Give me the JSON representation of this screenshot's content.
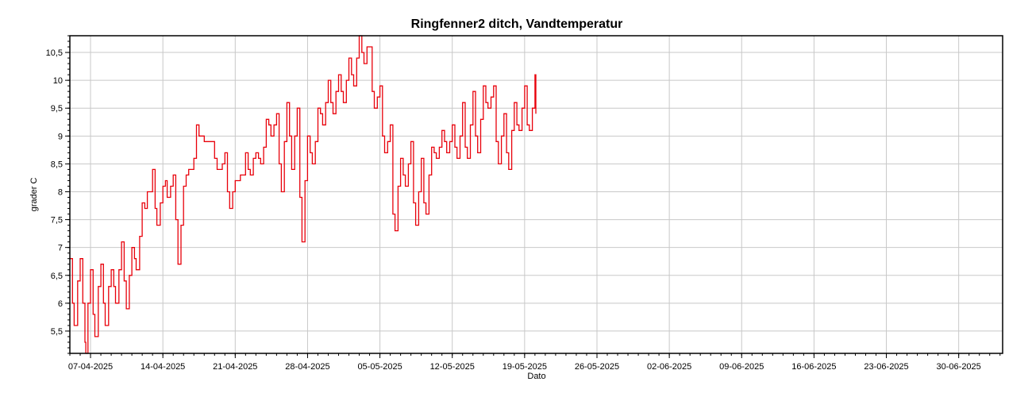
{
  "chart_data": {
    "type": "line",
    "title": "Ringfenner2 ditch, Vandtemperatur",
    "xlabel": "Dato",
    "ylabel": "grader C",
    "x_axis_type": "date",
    "xlim": [
      "2025-04-05T00:00",
      "2025-07-04T06:00"
    ],
    "ylim": [
      5.1,
      10.8
    ],
    "x_tick_labels": [
      "07-04-2025",
      "14-04-2025",
      "21-04-2025",
      "28-04-2025",
      "05-05-2025",
      "12-05-2025",
      "19-05-2025",
      "26-05-2025",
      "02-06-2025",
      "09-06-2025",
      "16-06-2025",
      "23-06-2025",
      "30-06-2025"
    ],
    "x_tick_dates": [
      "2025-04-07",
      "2025-04-14",
      "2025-04-21",
      "2025-04-28",
      "2025-05-05",
      "2025-05-12",
      "2025-05-19",
      "2025-05-26",
      "2025-06-02",
      "2025-06-09",
      "2025-06-16",
      "2025-06-23",
      "2025-06-30"
    ],
    "y_ticks": [
      5.5,
      6,
      6.5,
      7,
      7.5,
      8,
      8.5,
      9,
      9.5,
      10,
      10.5
    ],
    "y_tick_labels": [
      "5,5",
      "6",
      "6,5",
      "7",
      "7,5",
      "8",
      "8,5",
      "9",
      "9,5",
      "10",
      "10,5"
    ],
    "grid": true,
    "legend": "none",
    "series": [
      {
        "color": "#e8000a",
        "points": [
          [
            "2025-04-05T00:00",
            6.8
          ],
          [
            "2025-04-05T06:00",
            6.0
          ],
          [
            "2025-04-05T10:00",
            5.6
          ],
          [
            "2025-04-05T18:00",
            6.4
          ],
          [
            "2025-04-06T00:00",
            6.8
          ],
          [
            "2025-04-06T06:00",
            6.0
          ],
          [
            "2025-04-06T11:00",
            5.3
          ],
          [
            "2025-04-06T13:00",
            5.1
          ],
          [
            "2025-04-06T18:00",
            6.0
          ],
          [
            "2025-04-07T00:00",
            6.6
          ],
          [
            "2025-04-07T06:00",
            5.8
          ],
          [
            "2025-04-07T10:00",
            5.4
          ],
          [
            "2025-04-07T18:00",
            6.3
          ],
          [
            "2025-04-08T00:00",
            6.7
          ],
          [
            "2025-04-08T06:00",
            6.0
          ],
          [
            "2025-04-08T10:00",
            5.6
          ],
          [
            "2025-04-08T18:00",
            6.3
          ],
          [
            "2025-04-09T00:00",
            6.6
          ],
          [
            "2025-04-09T06:00",
            6.3
          ],
          [
            "2025-04-09T10:00",
            6.0
          ],
          [
            "2025-04-09T18:00",
            6.6
          ],
          [
            "2025-04-10T00:00",
            7.1
          ],
          [
            "2025-04-10T06:00",
            6.4
          ],
          [
            "2025-04-10T11:00",
            5.9
          ],
          [
            "2025-04-10T18:00",
            6.5
          ],
          [
            "2025-04-11T00:00",
            7.0
          ],
          [
            "2025-04-11T06:00",
            6.8
          ],
          [
            "2025-04-11T10:00",
            6.6
          ],
          [
            "2025-04-11T18:00",
            7.2
          ],
          [
            "2025-04-12T00:00",
            7.8
          ],
          [
            "2025-04-12T06:00",
            7.7
          ],
          [
            "2025-04-12T12:00",
            8.0
          ],
          [
            "2025-04-13T00:00",
            8.4
          ],
          [
            "2025-04-13T06:00",
            7.7
          ],
          [
            "2025-04-13T10:00",
            7.4
          ],
          [
            "2025-04-13T18:00",
            7.8
          ],
          [
            "2025-04-14T00:00",
            8.1
          ],
          [
            "2025-04-14T06:00",
            8.2
          ],
          [
            "2025-04-14T10:00",
            7.9
          ],
          [
            "2025-04-14T18:00",
            8.1
          ],
          [
            "2025-04-15T00:00",
            8.3
          ],
          [
            "2025-04-15T06:00",
            7.5
          ],
          [
            "2025-04-15T11:00",
            6.7
          ],
          [
            "2025-04-15T18:00",
            7.4
          ],
          [
            "2025-04-16T00:00",
            8.1
          ],
          [
            "2025-04-16T06:00",
            8.3
          ],
          [
            "2025-04-16T12:00",
            8.4
          ],
          [
            "2025-04-17T00:00",
            8.6
          ],
          [
            "2025-04-17T06:00",
            9.2
          ],
          [
            "2025-04-17T12:00",
            9.0
          ],
          [
            "2025-04-18T00:00",
            8.9
          ],
          [
            "2025-04-18T12:00",
            8.9
          ],
          [
            "2025-04-19T00:00",
            8.6
          ],
          [
            "2025-04-19T06:00",
            8.4
          ],
          [
            "2025-04-19T18:00",
            8.5
          ],
          [
            "2025-04-20T00:00",
            8.7
          ],
          [
            "2025-04-20T06:00",
            8.0
          ],
          [
            "2025-04-20T11:00",
            7.7
          ],
          [
            "2025-04-20T18:00",
            8.0
          ],
          [
            "2025-04-21T00:00",
            8.2
          ],
          [
            "2025-04-21T06:00",
            8.2
          ],
          [
            "2025-04-21T12:00",
            8.3
          ],
          [
            "2025-04-22T00:00",
            8.7
          ],
          [
            "2025-04-22T06:00",
            8.4
          ],
          [
            "2025-04-22T11:00",
            8.3
          ],
          [
            "2025-04-22T18:00",
            8.6
          ],
          [
            "2025-04-23T00:00",
            8.7
          ],
          [
            "2025-04-23T06:00",
            8.6
          ],
          [
            "2025-04-23T11:00",
            8.5
          ],
          [
            "2025-04-23T18:00",
            8.8
          ],
          [
            "2025-04-24T00:00",
            9.3
          ],
          [
            "2025-04-24T06:00",
            9.2
          ],
          [
            "2025-04-24T11:00",
            9.0
          ],
          [
            "2025-04-24T18:00",
            9.2
          ],
          [
            "2025-04-25T00:00",
            9.4
          ],
          [
            "2025-04-25T06:00",
            8.5
          ],
          [
            "2025-04-25T11:00",
            8.0
          ],
          [
            "2025-04-25T18:00",
            8.9
          ],
          [
            "2025-04-26T00:00",
            9.6
          ],
          [
            "2025-04-26T06:00",
            9.0
          ],
          [
            "2025-04-26T11:00",
            8.4
          ],
          [
            "2025-04-26T18:00",
            9.0
          ],
          [
            "2025-04-27T00:00",
            9.5
          ],
          [
            "2025-04-27T06:00",
            7.9
          ],
          [
            "2025-04-27T11:00",
            7.1
          ],
          [
            "2025-04-27T18:00",
            8.2
          ],
          [
            "2025-04-28T00:00",
            9.0
          ],
          [
            "2025-04-28T06:00",
            8.7
          ],
          [
            "2025-04-28T11:00",
            8.5
          ],
          [
            "2025-04-28T18:00",
            8.9
          ],
          [
            "2025-04-29T00:00",
            9.5
          ],
          [
            "2025-04-29T06:00",
            9.4
          ],
          [
            "2025-04-29T11:00",
            9.2
          ],
          [
            "2025-04-29T18:00",
            9.6
          ],
          [
            "2025-04-30T00:00",
            10.0
          ],
          [
            "2025-04-30T06:00",
            9.6
          ],
          [
            "2025-04-30T11:00",
            9.4
          ],
          [
            "2025-04-30T18:00",
            9.8
          ],
          [
            "2025-05-01T00:00",
            10.1
          ],
          [
            "2025-05-01T06:00",
            9.8
          ],
          [
            "2025-05-01T11:00",
            9.6
          ],
          [
            "2025-05-01T18:00",
            10.0
          ],
          [
            "2025-05-02T00:00",
            10.4
          ],
          [
            "2025-05-02T06:00",
            10.1
          ],
          [
            "2025-05-02T11:00",
            9.9
          ],
          [
            "2025-05-02T18:00",
            10.4
          ],
          [
            "2025-05-03T00:00",
            10.8
          ],
          [
            "2025-05-03T06:00",
            10.5
          ],
          [
            "2025-05-03T11:00",
            10.3
          ],
          [
            "2025-05-03T18:00",
            10.6
          ],
          [
            "2025-05-04T00:00",
            10.6
          ],
          [
            "2025-05-04T06:00",
            9.8
          ],
          [
            "2025-05-04T11:00",
            9.5
          ],
          [
            "2025-05-04T18:00",
            9.7
          ],
          [
            "2025-05-05T00:00",
            9.9
          ],
          [
            "2025-05-05T06:00",
            9.0
          ],
          [
            "2025-05-05T11:00",
            8.7
          ],
          [
            "2025-05-05T18:00",
            8.9
          ],
          [
            "2025-05-06T00:00",
            9.2
          ],
          [
            "2025-05-06T06:00",
            7.6
          ],
          [
            "2025-05-06T11:00",
            7.3
          ],
          [
            "2025-05-06T18:00",
            8.1
          ],
          [
            "2025-05-07T00:00",
            8.6
          ],
          [
            "2025-05-07T06:00",
            8.3
          ],
          [
            "2025-05-07T11:00",
            8.1
          ],
          [
            "2025-05-07T18:00",
            8.5
          ],
          [
            "2025-05-08T00:00",
            8.9
          ],
          [
            "2025-05-08T06:00",
            7.8
          ],
          [
            "2025-05-08T11:00",
            7.4
          ],
          [
            "2025-05-08T18:00",
            8.0
          ],
          [
            "2025-05-09T00:00",
            8.6
          ],
          [
            "2025-05-09T06:00",
            7.8
          ],
          [
            "2025-05-09T11:00",
            7.6
          ],
          [
            "2025-05-09T18:00",
            8.3
          ],
          [
            "2025-05-10T00:00",
            8.8
          ],
          [
            "2025-05-10T06:00",
            8.7
          ],
          [
            "2025-05-10T11:00",
            8.6
          ],
          [
            "2025-05-10T18:00",
            8.8
          ],
          [
            "2025-05-11T00:00",
            9.1
          ],
          [
            "2025-05-11T06:00",
            8.9
          ],
          [
            "2025-05-11T11:00",
            8.7
          ],
          [
            "2025-05-11T18:00",
            8.9
          ],
          [
            "2025-05-12T00:00",
            9.2
          ],
          [
            "2025-05-12T06:00",
            8.8
          ],
          [
            "2025-05-12T11:00",
            8.6
          ],
          [
            "2025-05-12T18:00",
            9.0
          ],
          [
            "2025-05-13T00:00",
            9.6
          ],
          [
            "2025-05-13T06:00",
            8.8
          ],
          [
            "2025-05-13T11:00",
            8.6
          ],
          [
            "2025-05-13T18:00",
            9.2
          ],
          [
            "2025-05-14T00:00",
            9.8
          ],
          [
            "2025-05-14T06:00",
            9.0
          ],
          [
            "2025-05-14T11:00",
            8.7
          ],
          [
            "2025-05-14T18:00",
            9.3
          ],
          [
            "2025-05-15T00:00",
            9.9
          ],
          [
            "2025-05-15T06:00",
            9.6
          ],
          [
            "2025-05-15T11:00",
            9.5
          ],
          [
            "2025-05-15T18:00",
            9.7
          ],
          [
            "2025-05-16T00:00",
            9.9
          ],
          [
            "2025-05-16T06:00",
            8.9
          ],
          [
            "2025-05-16T11:00",
            8.5
          ],
          [
            "2025-05-16T18:00",
            9.0
          ],
          [
            "2025-05-17T00:00",
            9.4
          ],
          [
            "2025-05-17T06:00",
            8.7
          ],
          [
            "2025-05-17T11:00",
            8.4
          ],
          [
            "2025-05-17T18:00",
            9.1
          ],
          [
            "2025-05-18T00:00",
            9.6
          ],
          [
            "2025-05-18T06:00",
            9.2
          ],
          [
            "2025-05-18T11:00",
            9.1
          ],
          [
            "2025-05-18T18:00",
            9.5
          ],
          [
            "2025-05-19T00:00",
            9.9
          ],
          [
            "2025-05-19T06:00",
            9.2
          ],
          [
            "2025-05-19T11:00",
            9.1
          ],
          [
            "2025-05-19T18:00",
            9.5
          ],
          [
            "2025-05-20T00:00",
            10.1
          ],
          [
            "2025-05-20T02:00",
            9.4
          ]
        ]
      }
    ]
  }
}
